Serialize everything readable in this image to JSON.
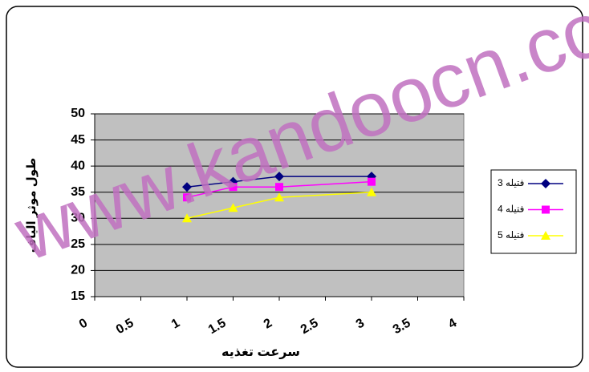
{
  "chart_data": {
    "type": "line",
    "x_label": "سرعت تغذیه",
    "y_label": "طول موثر الیاف",
    "watermark": "www.kandoocn.co",
    "x": [
      1,
      1.5,
      2,
      3
    ],
    "series": [
      {
        "name": "فتیله 3",
        "color": "#000080",
        "marker": "diamond",
        "values": [
          36,
          37,
          38,
          38
        ]
      },
      {
        "name": "فتیله 4",
        "color": "#ff00ff",
        "marker": "square",
        "values": [
          34,
          36,
          36,
          37
        ]
      },
      {
        "name": "فتیله 5",
        "color": "#ffff00",
        "marker": "triangle",
        "values": [
          30,
          32,
          34,
          35
        ]
      }
    ],
    "xlim": [
      0,
      4
    ],
    "xticks": [
      0,
      0.5,
      1,
      1.5,
      2,
      2.5,
      3,
      3.5,
      4
    ],
    "ylim": [
      15,
      50
    ],
    "yticks": [
      15,
      20,
      25,
      30,
      35,
      40,
      45,
      50
    ],
    "grid": true,
    "legend": "right",
    "plot_background": "#c0c0c0"
  }
}
